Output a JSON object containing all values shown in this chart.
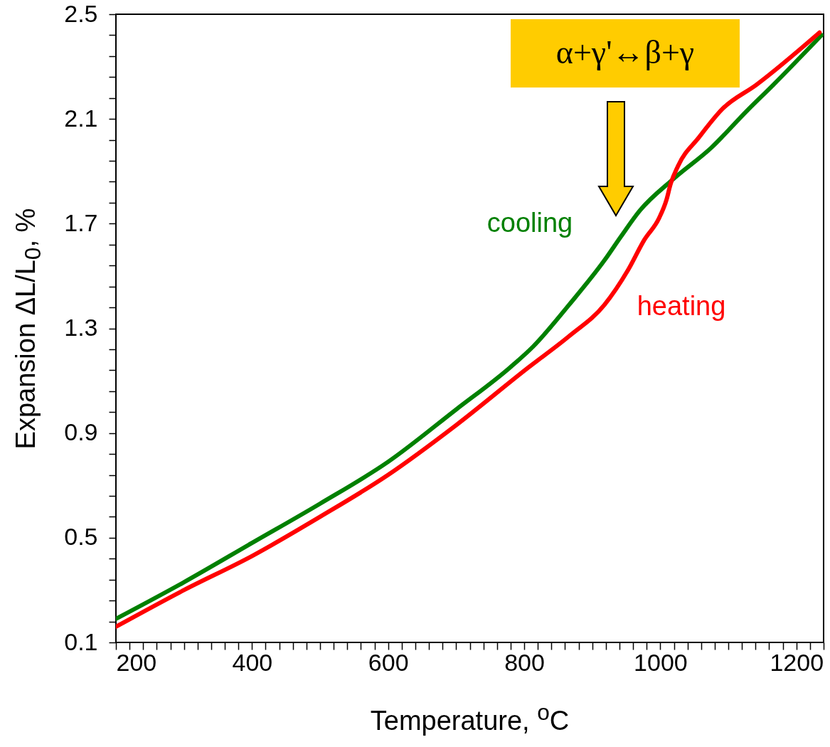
{
  "chart_data": {
    "type": "line",
    "xlabel": "Temperature, $^{o}$C",
    "ylabel": "Expansion  ΔL/L$_{0}$, %",
    "xlim": [
      200,
      1240
    ],
    "ylim": [
      0.1,
      2.5
    ],
    "xticks": [
      200,
      {
        "value": 220,
        "label": null
      },
      {
        "value": 240,
        "label": null
      },
      {
        "value": 260,
        "label": null
      },
      {
        "value": 280,
        "label": null
      },
      {
        "value": 300,
        "label": null
      },
      {
        "value": 320,
        "label": null
      },
      {
        "value": 340,
        "label": null
      },
      {
        "value": 360,
        "label": null
      },
      {
        "value": 380,
        "label": null
      },
      400,
      {
        "value": 420,
        "label": null
      },
      {
        "value": 440,
        "label": null
      },
      {
        "value": 460,
        "label": null
      },
      {
        "value": 480,
        "label": null
      },
      {
        "value": 500,
        "label": null
      },
      {
        "value": 520,
        "label": null
      },
      {
        "value": 540,
        "label": null
      },
      {
        "value": 560,
        "label": null
      },
      {
        "value": 580,
        "label": null
      },
      600,
      {
        "value": 620,
        "label": null
      },
      {
        "value": 640,
        "label": null
      },
      {
        "value": 660,
        "label": null
      },
      {
        "value": 680,
        "label": null
      },
      {
        "value": 700,
        "label": null
      },
      {
        "value": 720,
        "label": null
      },
      {
        "value": 740,
        "label": null
      },
      {
        "value": 760,
        "label": null
      },
      {
        "value": 780,
        "label": null
      },
      800,
      {
        "value": 820,
        "label": null
      },
      {
        "value": 840,
        "label": null
      },
      {
        "value": 860,
        "label": null
      },
      {
        "value": 880,
        "label": null
      },
      {
        "value": 900,
        "label": null
      },
      {
        "value": 920,
        "label": null
      },
      {
        "value": 940,
        "label": null
      },
      {
        "value": 960,
        "label": null
      },
      {
        "value": 980,
        "label": null
      },
      1000,
      {
        "value": 1020,
        "label": null
      },
      {
        "value": 1040,
        "label": null
      },
      {
        "value": 1060,
        "label": null
      },
      {
        "value": 1080,
        "label": null
      },
      {
        "value": 1100,
        "label": null
      },
      {
        "value": 1120,
        "label": null
      },
      {
        "value": 1140,
        "label": null
      },
      {
        "value": 1160,
        "label": null
      },
      {
        "value": 1180,
        "label": null
      },
      1200,
      {
        "value": 1220,
        "label": null
      },
      {
        "value": 1240,
        "label": null
      }
    ],
    "yticks": [
      0.1,
      {
        "value": 0.18,
        "label": null
      },
      {
        "value": 0.26,
        "label": null
      },
      {
        "value": 0.34,
        "label": null
      },
      {
        "value": 0.42,
        "label": null
      },
      0.5,
      {
        "value": 0.58,
        "label": null
      },
      {
        "value": 0.66,
        "label": null
      },
      {
        "value": 0.74,
        "label": null
      },
      {
        "value": 0.82,
        "label": null
      },
      0.9,
      {
        "value": 0.98,
        "label": null
      },
      {
        "value": 1.06,
        "label": null
      },
      {
        "value": 1.14,
        "label": null
      },
      {
        "value": 1.22,
        "label": null
      },
      1.3,
      {
        "value": 1.38,
        "label": null
      },
      {
        "value": 1.46,
        "label": null
      },
      {
        "value": 1.54,
        "label": null
      },
      {
        "value": 1.62,
        "label": null
      },
      1.7,
      {
        "value": 1.78,
        "label": null
      },
      {
        "value": 1.86,
        "label": null
      },
      {
        "value": 1.94,
        "label": null
      },
      {
        "value": 2.02,
        "label": null
      },
      2.1,
      {
        "value": 2.18,
        "label": null
      },
      {
        "value": 2.26,
        "label": null
      },
      {
        "value": 2.34,
        "label": null
      },
      {
        "value": 2.42,
        "label": null
      },
      2.5
    ],
    "grid": false,
    "legend": false,
    "line_style": "solid",
    "marker": "none",
    "series": [
      {
        "name": "cooling",
        "color": "#008000",
        "x": [
          200,
          300,
          400,
          500,
          600,
          700,
          779,
          813,
          866,
          918,
          942,
          970,
          1019,
          1075,
          1127,
          1166,
          1237
        ],
        "values": [
          0.19,
          0.33,
          0.48,
          0.63,
          0.79,
          0.99,
          1.15,
          1.23,
          1.39,
          1.56,
          1.65,
          1.75,
          1.87,
          1.99,
          2.13,
          2.23,
          2.42
        ]
      },
      {
        "name": "heating",
        "color": "#ff0000",
        "x": [
          200,
          300,
          400,
          500,
          600,
          700,
          806,
          866,
          918,
          952,
          977,
          998,
          1009,
          1015,
          1026,
          1057,
          1092,
          1141,
          1234
        ],
        "values": [
          0.16,
          0.3,
          0.43,
          0.58,
          0.74,
          0.93,
          1.15,
          1.27,
          1.39,
          1.52,
          1.64,
          1.72,
          1.79,
          1.85,
          1.92,
          2.03,
          2.14,
          2.23,
          2.43
        ]
      }
    ],
    "annotations": [
      "α+γ'↔β+γ"
    ]
  }
}
